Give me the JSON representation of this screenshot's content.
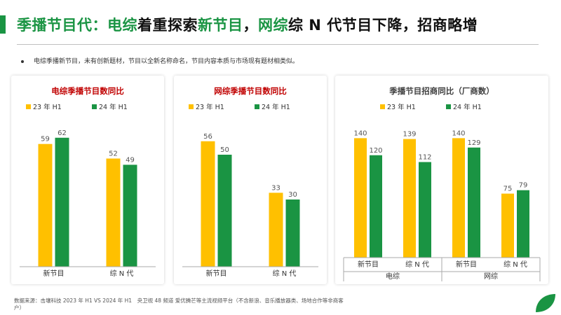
{
  "header": {
    "title_parts": [
      {
        "text": "季播节目代：",
        "color": "#1a9443"
      },
      {
        "text": "电综",
        "color": "#1a9443"
      },
      {
        "text": "着重探索",
        "color": "#111111"
      },
      {
        "text": "新节目",
        "color": "#1a9443"
      },
      {
        "text": "，",
        "color": "#111111"
      },
      {
        "text": "网综",
        "color": "#1a9443"
      },
      {
        "text": "综 N 代节目下降，招商略增",
        "color": "#111111"
      }
    ]
  },
  "bullet_text": "电综季播新节目，未有创新题材，节目以全新名称命名，节目内容本质与市场现有题材相类似。",
  "colors": {
    "accent": "#1a9443",
    "series_a": "#ffc000",
    "series_b": "#1a9443",
    "title_red": "#c00000",
    "title_dark": "#404040"
  },
  "chart_data": [
    {
      "type": "bar",
      "title": "电综季播节目数同比",
      "categories": [
        "新节目",
        "综 N 代"
      ],
      "series": [
        {
          "name": "23 年 H1",
          "values": [
            59,
            52
          ]
        },
        {
          "name": "24 年 H1",
          "values": [
            62,
            49
          ]
        }
      ],
      "ylim": [
        0,
        70
      ],
      "legend": "top",
      "grid": false
    },
    {
      "type": "bar",
      "title": "网综季播节目数同比",
      "categories": [
        "新节目",
        "综 N 代"
      ],
      "series": [
        {
          "name": "23 年 H1",
          "values": [
            56,
            33
          ]
        },
        {
          "name": "24 年 H1",
          "values": [
            50,
            30
          ]
        }
      ],
      "ylim": [
        0,
        65
      ],
      "legend": "top",
      "grid": false
    },
    {
      "type": "bar",
      "title": "季播节目招商同比（厂商数）",
      "categories": [
        "新节目",
        "综 N 代",
        "新节目",
        "综 N 代"
      ],
      "groups": [
        "电综",
        "网综"
      ],
      "series": [
        {
          "name": "23 年 H1",
          "values": [
            140,
            139,
            140,
            75
          ]
        },
        {
          "name": "24 年 H1",
          "values": [
            120,
            112,
            129,
            79
          ]
        }
      ],
      "ylim": [
        0,
        160
      ],
      "legend": "top",
      "grid": false
    }
  ],
  "footer": "数据来源：击壤科技 2023 年 H1 VS 2024 年 H1　央卫视 48 频道 爱优腾芒等主流视频平台（不含新浪、音乐播放器类、场地合作等非商客户）"
}
